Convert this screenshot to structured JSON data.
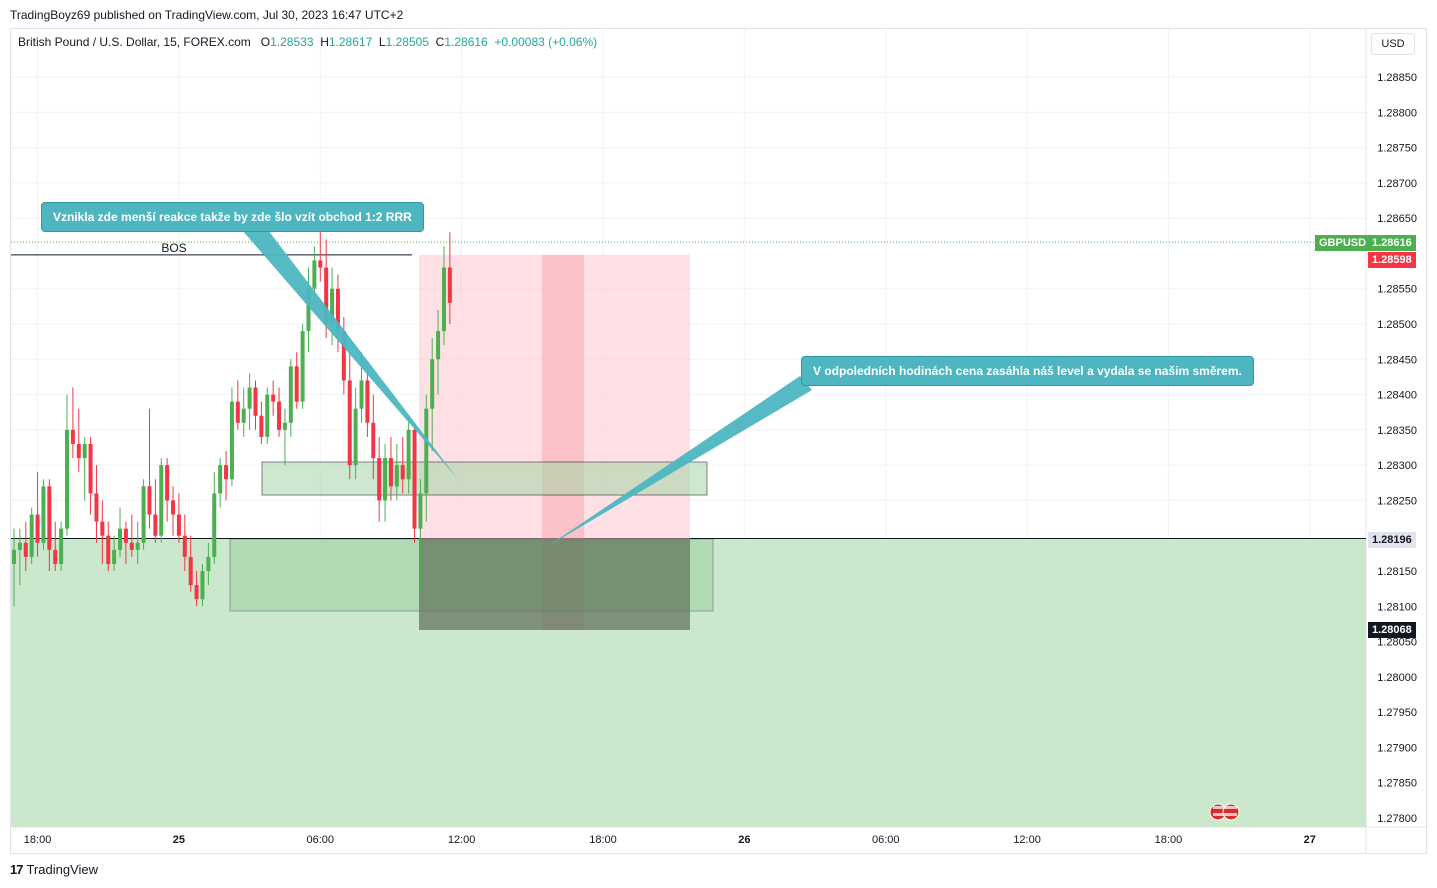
{
  "header": {
    "publisher": "TradingBoyz69 published on TradingView.com, Jul 30, 2023 16:47 UTC+2"
  },
  "legend": {
    "symbol": "British Pound / U.S. Dollar, 15, FOREX.com",
    "open_label": "O",
    "open": "1.28533",
    "high_label": "H",
    "high": "1.28617",
    "low_label": "L",
    "low": "1.28505",
    "close_label": "C",
    "close": "1.28616",
    "change": "+0.00083 (+0.06%)"
  },
  "currency_button": "USD",
  "annotations": {
    "bos": "BOS",
    "callout_1": "Vznikla zde menší reakce takže by zde šlo vzít obchod 1:2 RRR",
    "callout_2": "V odpoledních hodinách cena zasáhla náš level a vydala se našim směrem."
  },
  "price_tags": {
    "symbol": "GBPUSD",
    "last": "1.28616",
    "entry": "1.28598",
    "level": "1.28196",
    "stop": "1.28068"
  },
  "footer": {
    "brand": "TradingView"
  },
  "colors": {
    "up": "#4caf50",
    "down": "#f23645",
    "zone": "#c8e6c9",
    "risk": "#f9c4c8",
    "callout": "#4db6c1",
    "accent": "#26a69a"
  },
  "chart_data": {
    "type": "candlestick",
    "title": "British Pound / U.S. Dollar, 15, FOREX.com",
    "ylim": [
      1.2778,
      1.2888
    ],
    "y_ticks": [
      1.2885,
      1.288,
      1.2875,
      1.287,
      1.2865,
      1.2855,
      1.285,
      1.2845,
      1.284,
      1.2835,
      1.283,
      1.2825,
      1.2815,
      1.281,
      1.2805,
      1.28,
      1.2795,
      1.279,
      1.2785,
      1.278
    ],
    "y_tick_labels": [
      "1.28850",
      "1.28800",
      "1.28750",
      "1.28700",
      "1.28650",
      "1.28550",
      "1.28500",
      "1.28450",
      "1.28400",
      "1.28350",
      "1.28300",
      "1.28250",
      "1.28150",
      "1.28100",
      "1.28050",
      "1.28000",
      "1.27950",
      "1.27900",
      "1.27850",
      "1.27800"
    ],
    "x_ticks": [
      {
        "label": "18:00",
        "bar": 4
      },
      {
        "label": "25",
        "bar": 28
      },
      {
        "label": "06:00",
        "bar": 52
      },
      {
        "label": "12:00",
        "bar": 76
      },
      {
        "label": "18:00",
        "bar": 100
      },
      {
        "label": "26",
        "bar": 124
      },
      {
        "label": "06:00",
        "bar": 148
      },
      {
        "label": "12:00",
        "bar": 172
      },
      {
        "label": "18:00",
        "bar": 196
      },
      {
        "label": "27",
        "bar": 220
      }
    ],
    "candles": [
      [
        1.2816,
        1.2821,
        1.281,
        1.2818
      ],
      [
        1.2818,
        1.2821,
        1.2813,
        1.2819
      ],
      [
        1.2819,
        1.2822,
        1.2815,
        1.2817
      ],
      [
        1.2817,
        1.2824,
        1.2816,
        1.2823
      ],
      [
        1.2823,
        1.2829,
        1.2817,
        1.2819
      ],
      [
        1.2819,
        1.2828,
        1.2818,
        1.2827
      ],
      [
        1.2827,
        1.2828,
        1.2815,
        1.2818
      ],
      [
        1.2818,
        1.2822,
        1.2815,
        1.2816
      ],
      [
        1.2816,
        1.2822,
        1.2815,
        1.2821
      ],
      [
        1.2821,
        1.284,
        1.282,
        1.2835
      ],
      [
        1.2835,
        1.2841,
        1.2831,
        1.2833
      ],
      [
        1.2833,
        1.2838,
        1.2829,
        1.2831
      ],
      [
        1.2831,
        1.2834,
        1.2825,
        1.2833
      ],
      [
        1.2833,
        1.2834,
        1.2823,
        1.2826
      ],
      [
        1.2826,
        1.283,
        1.2819,
        1.2822
      ],
      [
        1.2822,
        1.2825,
        1.2816,
        1.282
      ],
      [
        1.282,
        1.2822,
        1.2815,
        1.2816
      ],
      [
        1.2816,
        1.282,
        1.2815,
        1.2818
      ],
      [
        1.2818,
        1.2824,
        1.2817,
        1.2821
      ],
      [
        1.2821,
        1.2822,
        1.2816,
        1.2819
      ],
      [
        1.2819,
        1.2823,
        1.2817,
        1.2818
      ],
      [
        1.2818,
        1.2822,
        1.2816,
        1.2819
      ],
      [
        1.2819,
        1.2828,
        1.2818,
        1.2827
      ],
      [
        1.2827,
        1.2838,
        1.2821,
        1.2823
      ],
      [
        1.2823,
        1.2828,
        1.2819,
        1.282
      ],
      [
        1.282,
        1.2831,
        1.2819,
        1.283
      ],
      [
        1.283,
        1.2831,
        1.2822,
        1.2825
      ],
      [
        1.2825,
        1.2827,
        1.282,
        1.2823
      ],
      [
        1.2823,
        1.2826,
        1.2819,
        1.282
      ],
      [
        1.282,
        1.2823,
        1.2815,
        1.2817
      ],
      [
        1.2817,
        1.282,
        1.2812,
        1.2813
      ],
      [
        1.2813,
        1.2815,
        1.281,
        1.2811
      ],
      [
        1.2811,
        1.2816,
        1.281,
        1.2815
      ],
      [
        1.2815,
        1.2819,
        1.2813,
        1.2817
      ],
      [
        1.2817,
        1.2829,
        1.2816,
        1.2826
      ],
      [
        1.2826,
        1.2831,
        1.2824,
        1.283
      ],
      [
        1.283,
        1.2832,
        1.2825,
        1.2828
      ],
      [
        1.2828,
        1.2841,
        1.2827,
        1.2839
      ],
      [
        1.2839,
        1.2842,
        1.2835,
        1.2836
      ],
      [
        1.2836,
        1.2841,
        1.2834,
        1.2838
      ],
      [
        1.2838,
        1.2843,
        1.2835,
        1.2841
      ],
      [
        1.2841,
        1.2842,
        1.2835,
        1.2837
      ],
      [
        1.2837,
        1.2839,
        1.2833,
        1.2834
      ],
      [
        1.2834,
        1.2841,
        1.2833,
        1.284
      ],
      [
        1.284,
        1.2842,
        1.2837,
        1.2839
      ],
      [
        1.2839,
        1.2841,
        1.2834,
        1.2835
      ],
      [
        1.2835,
        1.2838,
        1.283,
        1.2836
      ],
      [
        1.2836,
        1.2845,
        1.2834,
        1.2844
      ],
      [
        1.2844,
        1.2846,
        1.2838,
        1.2839
      ],
      [
        1.2839,
        1.285,
        1.2838,
        1.2849
      ],
      [
        1.2849,
        1.2858,
        1.2846,
        1.2855
      ],
      [
        1.2855,
        1.2861,
        1.2852,
        1.2859
      ],
      [
        1.2859,
        1.2865,
        1.2856,
        1.2858
      ],
      [
        1.2858,
        1.2862,
        1.2848,
        1.285
      ],
      [
        1.285,
        1.2858,
        1.2847,
        1.2855
      ],
      [
        1.2855,
        1.2857,
        1.2846,
        1.2849
      ],
      [
        1.2849,
        1.2851,
        1.284,
        1.2842
      ],
      [
        1.2842,
        1.2846,
        1.2828,
        1.283
      ],
      [
        1.283,
        1.2841,
        1.2828,
        1.2838
      ],
      [
        1.2838,
        1.2846,
        1.2836,
        1.2842
      ],
      [
        1.2842,
        1.2844,
        1.2834,
        1.2836
      ],
      [
        1.2836,
        1.284,
        1.2828,
        1.2831
      ],
      [
        1.2831,
        1.2834,
        1.2822,
        1.2825
      ],
      [
        1.2825,
        1.2833,
        1.2822,
        1.2831
      ],
      [
        1.2831,
        1.2834,
        1.2825,
        1.2827
      ],
      [
        1.2827,
        1.2833,
        1.2825,
        1.283
      ],
      [
        1.283,
        1.2834,
        1.2826,
        1.2828
      ],
      [
        1.2828,
        1.2837,
        1.2826,
        1.2835
      ],
      [
        1.2835,
        1.2836,
        1.2819,
        1.2821
      ],
      [
        1.2821,
        1.2828,
        1.2812,
        1.2826
      ],
      [
        1.2826,
        1.284,
        1.2822,
        1.2838
      ],
      [
        1.2838,
        1.2848,
        1.2832,
        1.2845
      ],
      [
        1.2845,
        1.2852,
        1.284,
        1.2849
      ],
      [
        1.2849,
        1.2861,
        1.2847,
        1.2858
      ],
      [
        1.2858,
        1.2863,
        1.285,
        1.2853
      ]
    ],
    "markers": {
      "bos": 1.28598,
      "level": 1.28196,
      "last": 1.28616
    }
  }
}
